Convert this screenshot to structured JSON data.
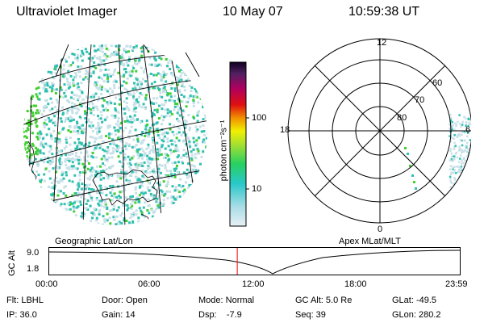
{
  "header": {
    "instrument": "Ultraviolet Imager",
    "date": "10 May 07",
    "time": "10:59:38 UT"
  },
  "colorbar": {
    "unit_label": "photon cm⁻²s⁻¹",
    "ticks": [
      "100",
      "10"
    ]
  },
  "polar_plot": {
    "mlt_labels": [
      "12",
      "18",
      "6",
      "0"
    ],
    "lat_labels": [
      "60",
      "70",
      "80"
    ]
  },
  "geo_label": "Geographic Lat/Lon",
  "apex_label": "Apex MLat/MLT",
  "altitude_plot": {
    "ylabel": "GC Alt",
    "yticks": [
      "9.0",
      "1.8"
    ],
    "xticks": [
      "00:00",
      "06:00",
      "12:00",
      "18:00",
      "23:59"
    ],
    "current_time_fraction": 0.458
  },
  "info": {
    "filter": "Flt: LBHL",
    "ip": "IP: 36.0",
    "door": "Door: Open",
    "gain": "Gain: 14",
    "mode": "Mode: Normal",
    "dsp": "Dsp:    -7.9",
    "gc_alt": "GC Alt: 5.0 Re",
    "seq": "Seq: 39",
    "glat": "GLat: -49.5",
    "glon": "GLon: 280.2"
  },
  "colors": {
    "grid": "#000000",
    "time_marker": "#ff0000",
    "emission_low": "#c8e0e8",
    "emission_mid": "#30c0b0",
    "emission_high": "#40d030"
  }
}
